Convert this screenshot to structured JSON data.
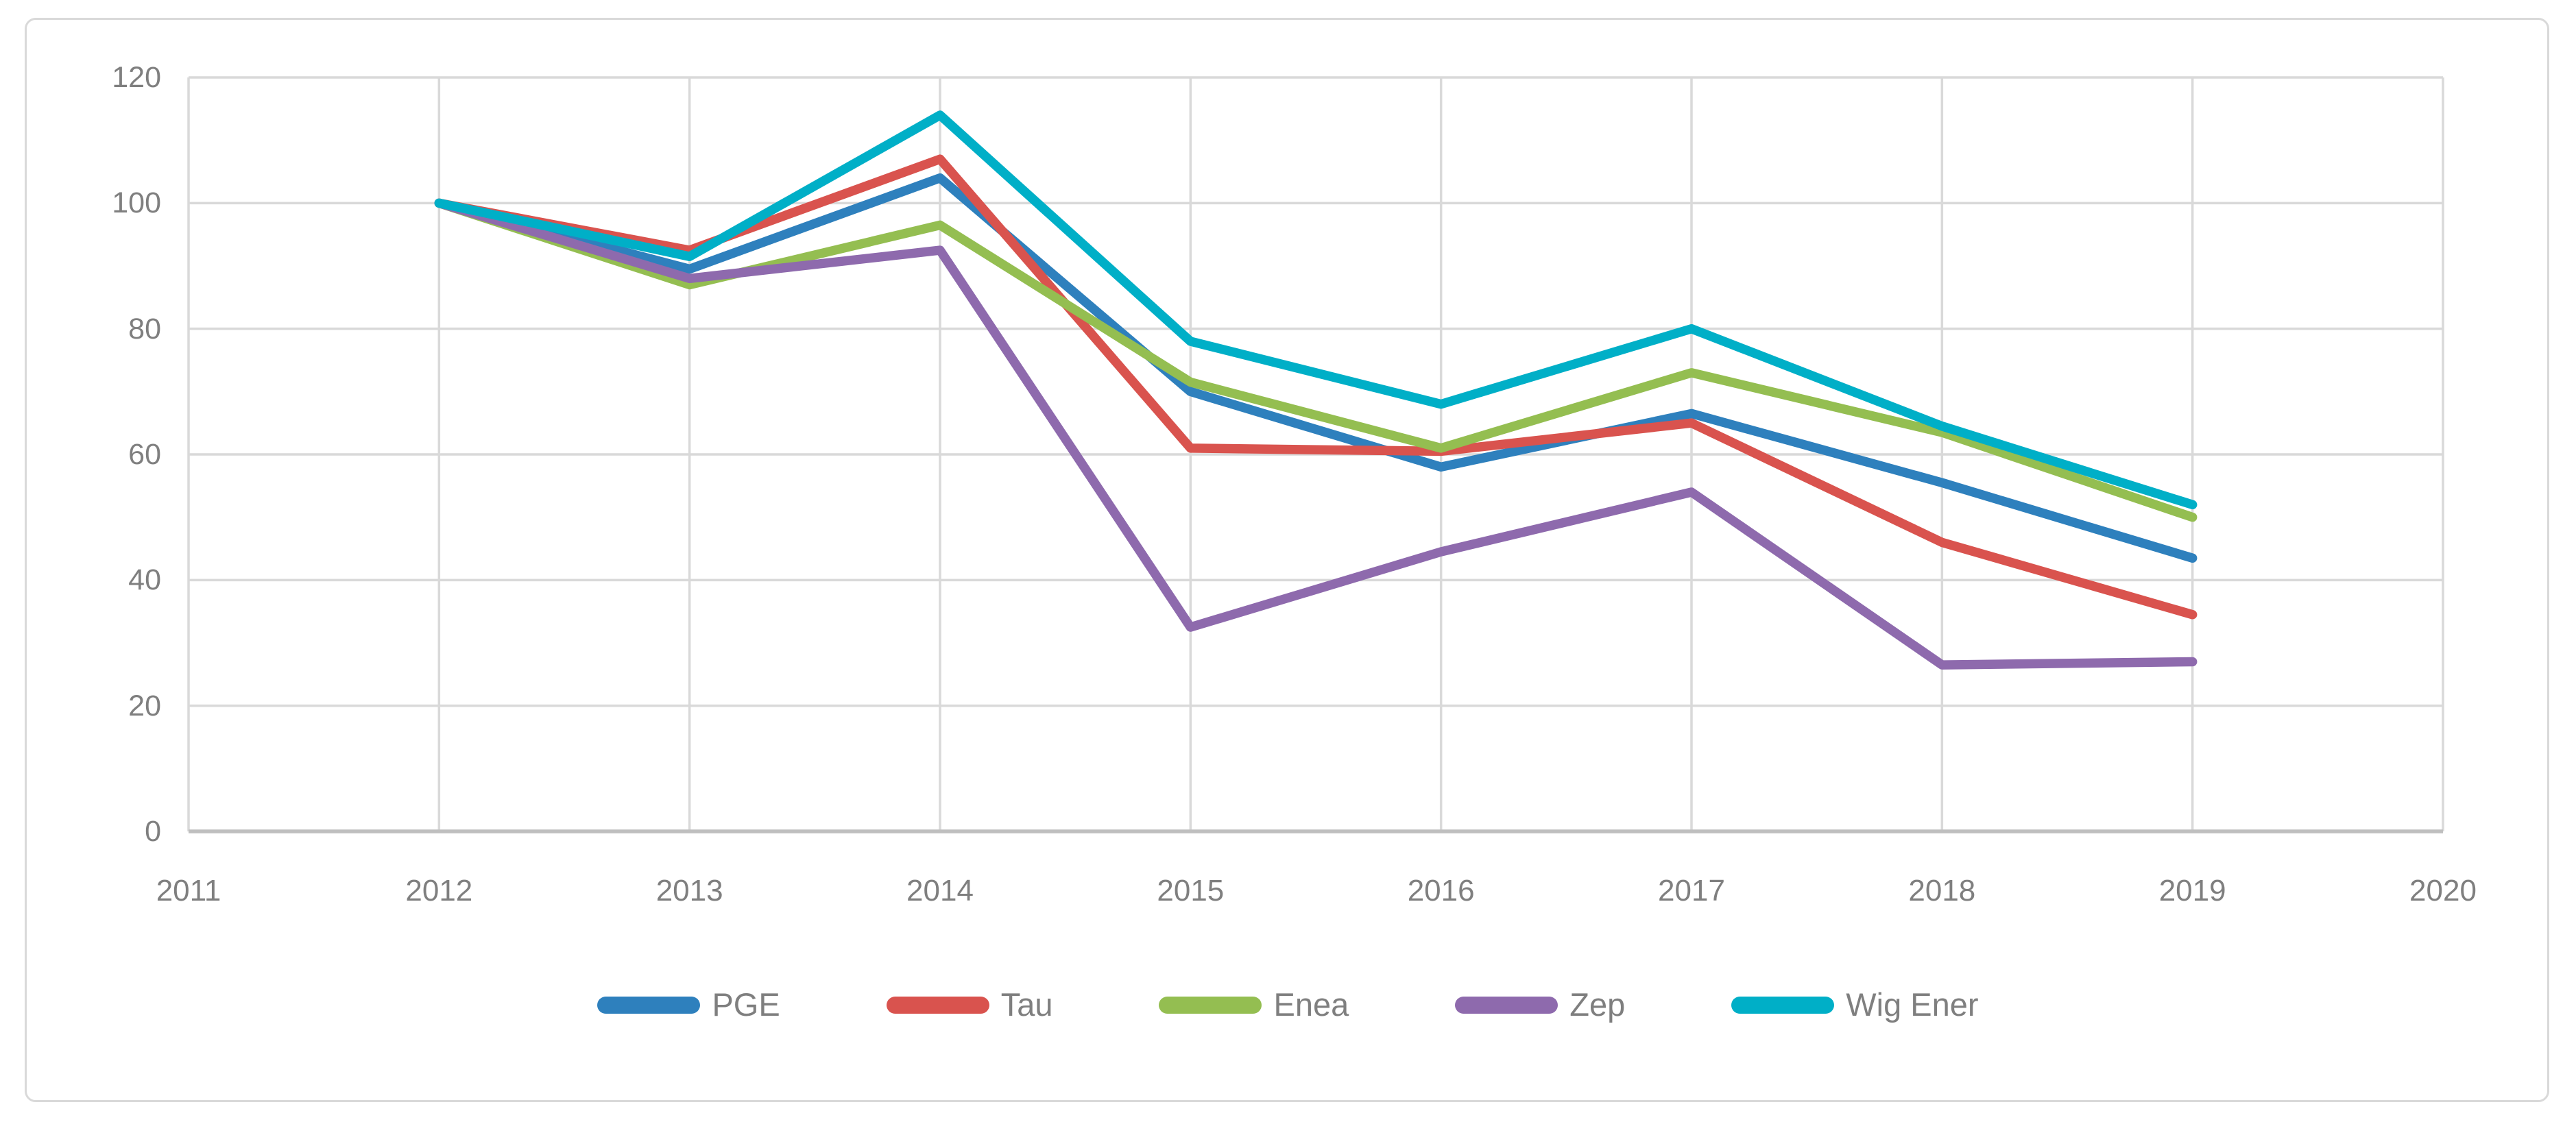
{
  "figure": {
    "background": "#ffffff",
    "border_color": "#d9d9d9"
  },
  "chart_data": {
    "type": "line",
    "title": "",
    "xlabel": "",
    "ylabel": "",
    "x": [
      2012,
      2013,
      2014,
      2015,
      2016,
      2017,
      2018,
      2019
    ],
    "series": [
      {
        "name": "PGE",
        "color": "#2e80bd",
        "values": [
          100,
          89.5,
          104,
          70,
          58,
          66.5,
          55.5,
          43.5
        ]
      },
      {
        "name": "Tau",
        "color": "#d9534e",
        "values": [
          100,
          92.5,
          107,
          61,
          60.5,
          65,
          46,
          34.5
        ]
      },
      {
        "name": "Enea",
        "color": "#94be51",
        "values": [
          100,
          87,
          96.5,
          71.5,
          61,
          73,
          63.5,
          50
        ]
      },
      {
        "name": "Zep",
        "color": "#8e6aad",
        "values": [
          100,
          88,
          92.5,
          32.5,
          44.5,
          54,
          26.5,
          27
        ]
      },
      {
        "name": "Wig Ener",
        "color": "#00afc7",
        "values": [
          100,
          91.5,
          114,
          78,
          68,
          80,
          64.5,
          52
        ]
      }
    ],
    "x_axis_ticks": [
      "2011",
      "2012",
      "2013",
      "2014",
      "2015",
      "2016",
      "2017",
      "2018",
      "2019",
      "2020"
    ],
    "y_ticks": [
      "0",
      "20",
      "40",
      "60",
      "80",
      "100",
      "120"
    ],
    "xlim": [
      2011,
      2020
    ],
    "ylim": [
      0,
      120
    ],
    "grid": true,
    "legend_position": "bottom",
    "gridline_color": "#d9d9d9",
    "axis_line_color": "#bfbfbf",
    "tick_label_color": "#7f7f7f",
    "line_width": 13.5
  }
}
